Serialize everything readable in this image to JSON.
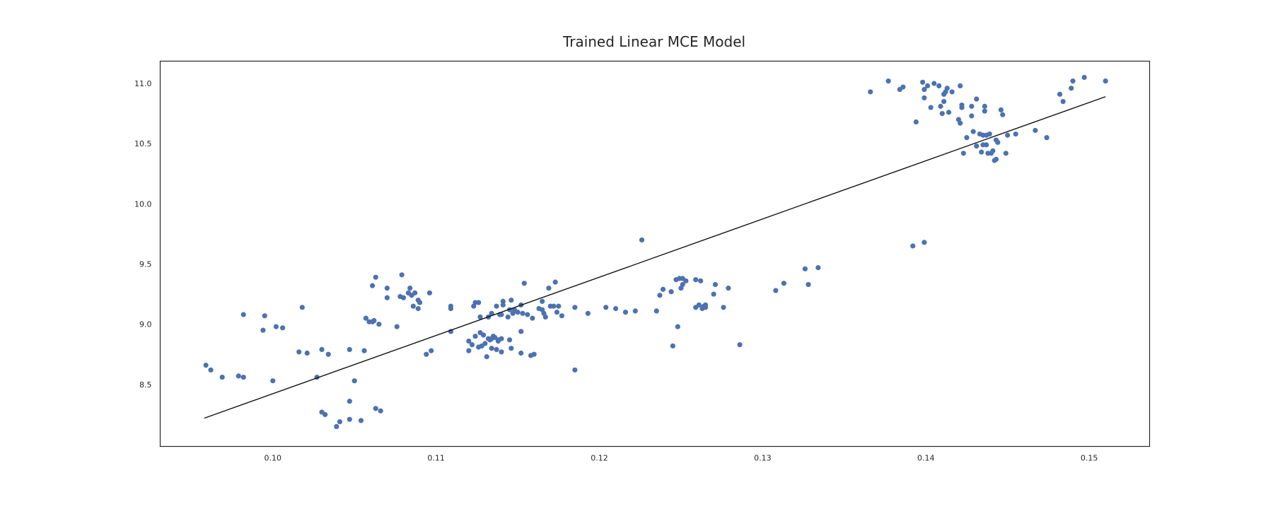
{
  "chart_data": {
    "type": "scatter",
    "title": "Trained Linear MCE Model",
    "xlabel": "",
    "ylabel": "",
    "xlim": [
      0.0931,
      0.1537
    ],
    "ylim": [
      7.985,
      11.185
    ],
    "xticks": [
      0.1,
      0.11,
      0.12,
      0.13,
      0.14,
      0.15
    ],
    "xtick_labels": [
      "0.10",
      "0.11",
      "0.12",
      "0.13",
      "0.14",
      "0.15"
    ],
    "yticks": [
      8.5,
      9.0,
      9.5,
      10.0,
      10.5,
      11.0
    ],
    "ytick_labels": [
      "8.5",
      "9.0",
      "9.5",
      "10.0",
      "10.5",
      "11.0"
    ],
    "grid": false,
    "legend": "none",
    "colors": {
      "points": "#4c72b0",
      "fit_line": "#111111",
      "frame": "#262626"
    },
    "fit_line": {
      "x": [
        0.0958,
        0.151
      ],
      "y": [
        8.22,
        10.89
      ]
    },
    "points": [
      [
        0.0959,
        8.66
      ],
      [
        0.0962,
        8.62
      ],
      [
        0.0969,
        8.56
      ],
      [
        0.0979,
        8.57
      ],
      [
        0.0982,
        8.56
      ],
      [
        0.0982,
        9.08
      ],
      [
        0.0994,
        8.95
      ],
      [
        0.0995,
        9.07
      ],
      [
        0.1,
        8.53
      ],
      [
        0.1002,
        8.98
      ],
      [
        0.1006,
        8.97
      ],
      [
        0.1016,
        8.77
      ],
      [
        0.1018,
        9.14
      ],
      [
        0.1021,
        8.76
      ],
      [
        0.1027,
        8.56
      ],
      [
        0.103,
        8.79
      ],
      [
        0.103,
        8.27
      ],
      [
        0.1032,
        8.25
      ],
      [
        0.1034,
        8.75
      ],
      [
        0.1039,
        8.15
      ],
      [
        0.1041,
        8.19
      ],
      [
        0.1047,
        8.36
      ],
      [
        0.1047,
        8.21
      ],
      [
        0.1047,
        8.79
      ],
      [
        0.105,
        8.53
      ],
      [
        0.1054,
        8.2
      ],
      [
        0.1056,
        8.78
      ],
      [
        0.1057,
        9.05
      ],
      [
        0.1059,
        9.02
      ],
      [
        0.1061,
        9.02
      ],
      [
        0.1061,
        9.32
      ],
      [
        0.1062,
        9.03
      ],
      [
        0.1063,
        9.39
      ],
      [
        0.1063,
        8.3
      ],
      [
        0.1065,
        9.0
      ],
      [
        0.1066,
        8.28
      ],
      [
        0.107,
        9.3
      ],
      [
        0.107,
        9.22
      ],
      [
        0.1076,
        8.98
      ],
      [
        0.1078,
        9.23
      ],
      [
        0.1079,
        9.41
      ],
      [
        0.108,
        9.22
      ],
      [
        0.1083,
        9.26
      ],
      [
        0.1084,
        9.3
      ],
      [
        0.1085,
        9.24
      ],
      [
        0.1086,
        9.15
      ],
      [
        0.1087,
        9.26
      ],
      [
        0.1089,
        9.13
      ],
      [
        0.1089,
        9.2
      ],
      [
        0.109,
        9.18
      ],
      [
        0.1094,
        8.75
      ],
      [
        0.1096,
        9.26
      ],
      [
        0.1097,
        8.78
      ],
      [
        0.1109,
        9.15
      ],
      [
        0.1109,
        9.13
      ],
      [
        0.1109,
        8.94
      ],
      [
        0.112,
        8.86
      ],
      [
        0.112,
        8.78
      ],
      [
        0.1122,
        8.83
      ],
      [
        0.1123,
        9.15
      ],
      [
        0.1124,
        9.18
      ],
      [
        0.1124,
        8.9
      ],
      [
        0.1126,
        9.18
      ],
      [
        0.1126,
        8.81
      ],
      [
        0.1127,
        8.93
      ],
      [
        0.1127,
        9.06
      ],
      [
        0.1128,
        8.82
      ],
      [
        0.1129,
        8.91
      ],
      [
        0.113,
        8.84
      ],
      [
        0.1131,
        8.73
      ],
      [
        0.1132,
        8.88
      ],
      [
        0.1132,
        9.06
      ],
      [
        0.1133,
        8.87
      ],
      [
        0.1134,
        9.09
      ],
      [
        0.1134,
        8.8
      ],
      [
        0.1134,
        8.88
      ],
      [
        0.1135,
        8.9
      ],
      [
        0.1136,
        8.89
      ],
      [
        0.1137,
        8.79
      ],
      [
        0.1137,
        9.15
      ],
      [
        0.1138,
        8.87
      ],
      [
        0.1138,
        8.86
      ],
      [
        0.1139,
        9.08
      ],
      [
        0.114,
        9.08
      ],
      [
        0.114,
        8.88
      ],
      [
        0.114,
        8.77
      ],
      [
        0.1141,
        9.19
      ],
      [
        0.1141,
        9.16
      ],
      [
        0.1144,
        9.06
      ],
      [
        0.1145,
        8.87
      ],
      [
        0.1145,
        9.12
      ],
      [
        0.1146,
        9.2
      ],
      [
        0.1146,
        8.8
      ],
      [
        0.1147,
        9.09
      ],
      [
        0.1148,
        9.12
      ],
      [
        0.115,
        9.1
      ],
      [
        0.1152,
        8.94
      ],
      [
        0.1152,
        9.16
      ],
      [
        0.1152,
        8.76
      ],
      [
        0.1153,
        9.09
      ],
      [
        0.1154,
        9.34
      ],
      [
        0.1156,
        9.08
      ],
      [
        0.1158,
        8.74
      ],
      [
        0.1159,
        9.05
      ],
      [
        0.116,
        8.75
      ],
      [
        0.1163,
        9.13
      ],
      [
        0.1165,
        9.12
      ],
      [
        0.1165,
        9.19
      ],
      [
        0.1166,
        9.09
      ],
      [
        0.1167,
        9.06
      ],
      [
        0.1169,
        9.3
      ],
      [
        0.117,
        9.15
      ],
      [
        0.1172,
        9.15
      ],
      [
        0.1173,
        9.35
      ],
      [
        0.1174,
        9.1
      ],
      [
        0.1175,
        9.15
      ],
      [
        0.1177,
        9.07
      ],
      [
        0.1185,
        8.62
      ],
      [
        0.1185,
        9.14
      ],
      [
        0.1193,
        9.09
      ],
      [
        0.1204,
        9.14
      ],
      [
        0.121,
        9.13
      ],
      [
        0.1216,
        9.1
      ],
      [
        0.1222,
        9.11
      ],
      [
        0.1226,
        9.7
      ],
      [
        0.1235,
        9.11
      ],
      [
        0.1237,
        9.24
      ],
      [
        0.1239,
        9.29
      ],
      [
        0.1244,
        9.27
      ],
      [
        0.1245,
        8.82
      ],
      [
        0.1247,
        9.37
      ],
      [
        0.1248,
        8.98
      ],
      [
        0.1249,
        9.38
      ],
      [
        0.125,
        9.3
      ],
      [
        0.1251,
        9.33
      ],
      [
        0.1251,
        9.38
      ],
      [
        0.1253,
        9.36
      ],
      [
        0.1259,
        9.14
      ],
      [
        0.1259,
        9.37
      ],
      [
        0.1261,
        9.16
      ],
      [
        0.1262,
        9.36
      ],
      [
        0.1263,
        9.13
      ],
      [
        0.1264,
        9.15
      ],
      [
        0.1265,
        9.14
      ],
      [
        0.1265,
        9.16
      ],
      [
        0.127,
        9.25
      ],
      [
        0.1271,
        9.33
      ],
      [
        0.1276,
        9.14
      ],
      [
        0.1279,
        9.3
      ],
      [
        0.1286,
        8.83
      ],
      [
        0.1308,
        9.28
      ],
      [
        0.1313,
        9.34
      ],
      [
        0.1326,
        9.46
      ],
      [
        0.1328,
        9.33
      ],
      [
        0.1334,
        9.47
      ],
      [
        0.1366,
        10.93
      ],
      [
        0.1377,
        11.02
      ],
      [
        0.1384,
        10.95
      ],
      [
        0.1386,
        10.97
      ],
      [
        0.1392,
        9.65
      ],
      [
        0.1394,
        10.68
      ],
      [
        0.1398,
        11.01
      ],
      [
        0.1399,
        10.95
      ],
      [
        0.1399,
        10.88
      ],
      [
        0.1399,
        9.68
      ],
      [
        0.1401,
        10.98
      ],
      [
        0.1403,
        10.8
      ],
      [
        0.1405,
        11.0
      ],
      [
        0.1408,
        10.98
      ],
      [
        0.1409,
        10.81
      ],
      [
        0.141,
        10.75
      ],
      [
        0.1411,
        10.85
      ],
      [
        0.1411,
        10.91
      ],
      [
        0.1412,
        10.93
      ],
      [
        0.1413,
        10.96
      ],
      [
        0.1414,
        10.76
      ],
      [
        0.1416,
        10.93
      ],
      [
        0.142,
        10.7
      ],
      [
        0.1421,
        10.98
      ],
      [
        0.1421,
        10.67
      ],
      [
        0.1422,
        10.82
      ],
      [
        0.1422,
        10.8
      ],
      [
        0.1423,
        10.42
      ],
      [
        0.1425,
        10.55
      ],
      [
        0.1428,
        10.81
      ],
      [
        0.1428,
        10.73
      ],
      [
        0.1429,
        10.6
      ],
      [
        0.1431,
        10.87
      ],
      [
        0.1431,
        10.48
      ],
      [
        0.1433,
        10.58
      ],
      [
        0.1434,
        10.43
      ],
      [
        0.1435,
        10.49
      ],
      [
        0.1435,
        10.57
      ],
      [
        0.1436,
        10.77
      ],
      [
        0.1436,
        10.81
      ],
      [
        0.1437,
        10.57
      ],
      [
        0.1437,
        10.49
      ],
      [
        0.1438,
        10.42
      ],
      [
        0.1439,
        10.58
      ],
      [
        0.144,
        10.42
      ],
      [
        0.1441,
        10.44
      ],
      [
        0.1442,
        10.36
      ],
      [
        0.1443,
        10.37
      ],
      [
        0.1443,
        10.53
      ],
      [
        0.1444,
        10.51
      ],
      [
        0.1446,
        10.78
      ],
      [
        0.1447,
        10.74
      ],
      [
        0.1449,
        10.42
      ],
      [
        0.145,
        10.57
      ],
      [
        0.1455,
        10.58
      ],
      [
        0.1467,
        10.61
      ],
      [
        0.1474,
        10.55
      ],
      [
        0.1482,
        10.91
      ],
      [
        0.1484,
        10.85
      ],
      [
        0.1489,
        10.96
      ],
      [
        0.149,
        11.02
      ],
      [
        0.1497,
        11.05
      ],
      [
        0.151,
        11.02
      ]
    ]
  }
}
